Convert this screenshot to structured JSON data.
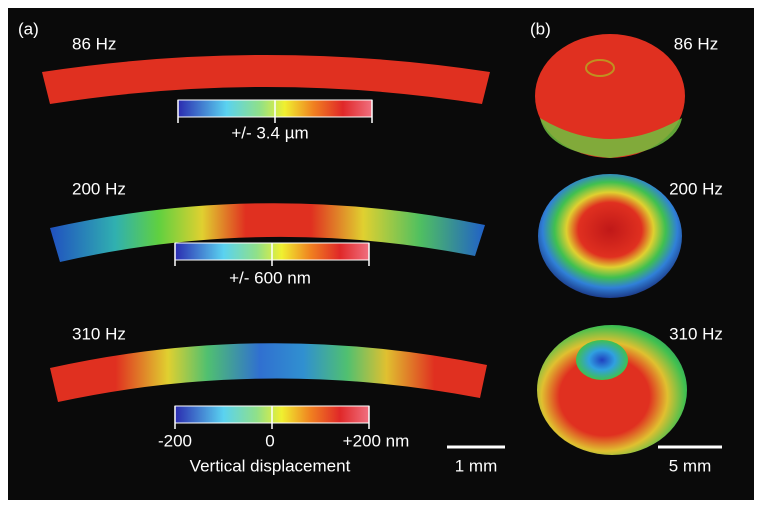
{
  "panel_a": {
    "label": "(a)",
    "rows": [
      {
        "frequency": "86 Hz",
        "scale": "+/- 3.4 µm"
      },
      {
        "frequency": "200 Hz",
        "scale": "+/- 600 nm"
      },
      {
        "frequency": "310 Hz"
      }
    ],
    "colorbar_ticks": [
      "-200",
      "0",
      "+200 nm"
    ],
    "colorbar_title": "Vertical displacement",
    "scale_bar": "1 mm"
  },
  "panel_b": {
    "label": "(b)",
    "frequencies": [
      "86 Hz",
      "200 Hz",
      "310 Hz"
    ],
    "scale_bar": "5 mm"
  }
}
